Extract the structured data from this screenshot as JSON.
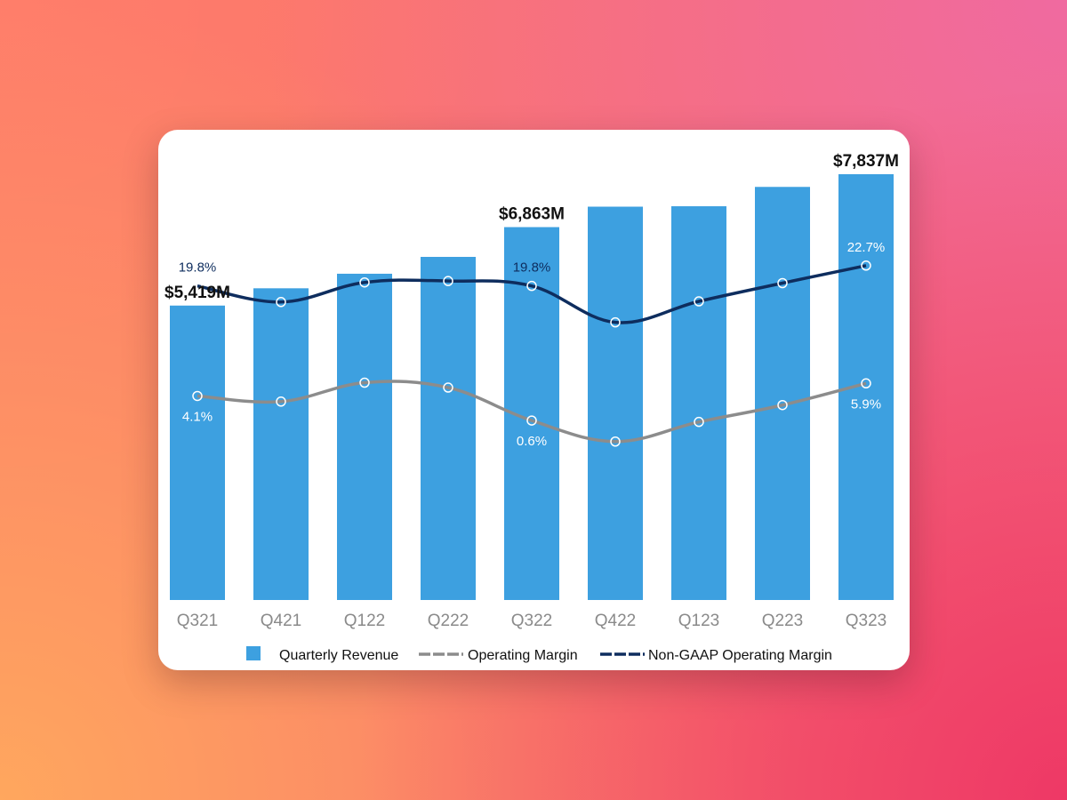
{
  "colors": {
    "bar": "#3da0e0",
    "operating_margin": "#8c8c8c",
    "non_gaap_margin": "#0e2d5e",
    "bg_top_left": "#ff7e6a",
    "bg_top_right": "#f06aa0",
    "bg_bottom_left": "#ffa75e",
    "bg_bottom_right": "#ee3866"
  },
  "chart_data": {
    "type": "bar",
    "categories": [
      "Q321",
      "Q421",
      "Q122",
      "Q222",
      "Q322",
      "Q422",
      "Q123",
      "Q223",
      "Q323"
    ],
    "series": [
      {
        "name": "Quarterly Revenue",
        "type": "bar",
        "axis": "left",
        "values": [
          5419,
          5737,
          6005,
          6315,
          6863,
          7239,
          7247,
          7603,
          7837
        ],
        "data_labels": [
          "$5,419M",
          null,
          null,
          null,
          "$6,863M",
          null,
          null,
          null,
          "$7,837M"
        ]
      },
      {
        "name": "Operating Margin",
        "type": "line",
        "axis": "right",
        "values": [
          4.1,
          3.3,
          6.0,
          5.3,
          0.6,
          -2.4,
          0.4,
          2.8,
          5.9
        ],
        "data_labels": [
          "4.1%",
          null,
          null,
          null,
          "0.6%",
          null,
          null,
          null,
          "5.9%"
        ]
      },
      {
        "name": "Non-GAAP Operating Margin",
        "type": "line",
        "axis": "right",
        "values": [
          19.8,
          17.5,
          20.3,
          20.5,
          19.8,
          14.6,
          17.6,
          20.2,
          22.7
        ],
        "data_labels": [
          "19.8%",
          null,
          null,
          null,
          "19.8%",
          null,
          null,
          null,
          "22.7%"
        ]
      }
    ],
    "ylim_left": [
      0,
      8000
    ],
    "ylim_right": [
      -25,
      37
    ],
    "grid": false,
    "legend_position": "bottom"
  }
}
